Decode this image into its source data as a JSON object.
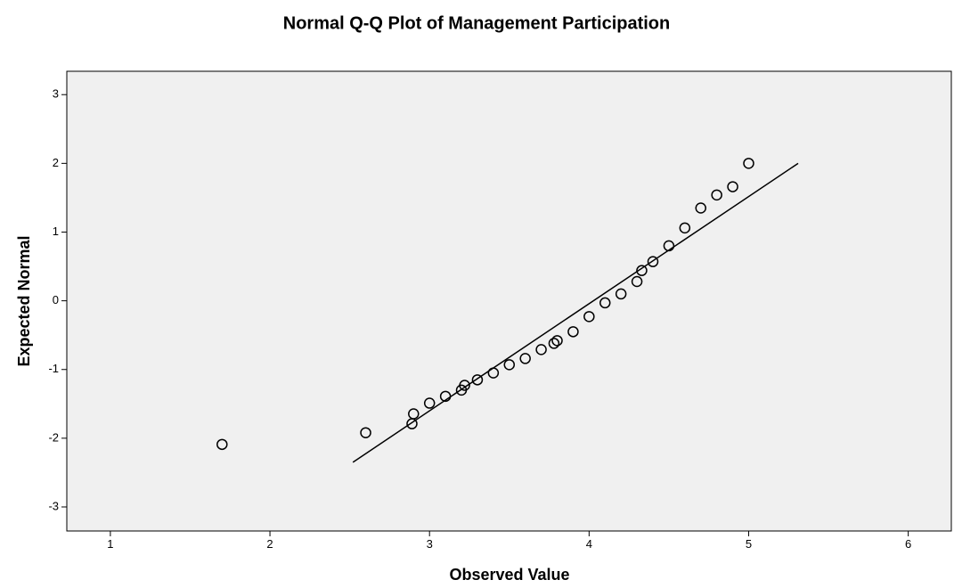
{
  "chart_data": {
    "type": "scatter",
    "title": "Normal Q-Q Plot of Management Participation",
    "x_label": "Observed Value",
    "y_label": "Expected Normal",
    "x": [
      1.7,
      2.6,
      2.89,
      2.9,
      3.0,
      3.1,
      3.2,
      3.22,
      3.3,
      3.4,
      3.5,
      3.6,
      3.7,
      3.78,
      3.8,
      3.9,
      4.0,
      4.1,
      4.2,
      4.3,
      4.33,
      4.4,
      4.5,
      4.6,
      4.7,
      4.8,
      4.9,
      5.0
    ],
    "values": [
      -2.09,
      -1.92,
      -1.79,
      -1.645,
      -1.49,
      -1.39,
      -1.3,
      -1.23,
      -1.15,
      -1.05,
      -0.93,
      -0.84,
      -0.71,
      -0.62,
      -0.58,
      -0.45,
      -0.23,
      -0.03,
      0.1,
      0.28,
      0.44,
      0.57,
      0.8,
      1.06,
      1.35,
      1.54,
      1.66,
      2.0
    ],
    "color": "#000000",
    "reference_line": {
      "x": [
        2.52,
        5.31
      ],
      "y": [
        -2.35,
        2.0
      ]
    },
    "xlim": [
      0.727,
      6.27
    ],
    "ylim": [
      -3.35,
      3.34
    ],
    "xticks": [
      1,
      2,
      3,
      4,
      5,
      6
    ],
    "yticks": [
      -3,
      -2,
      -1,
      0,
      1,
      2,
      3
    ]
  }
}
